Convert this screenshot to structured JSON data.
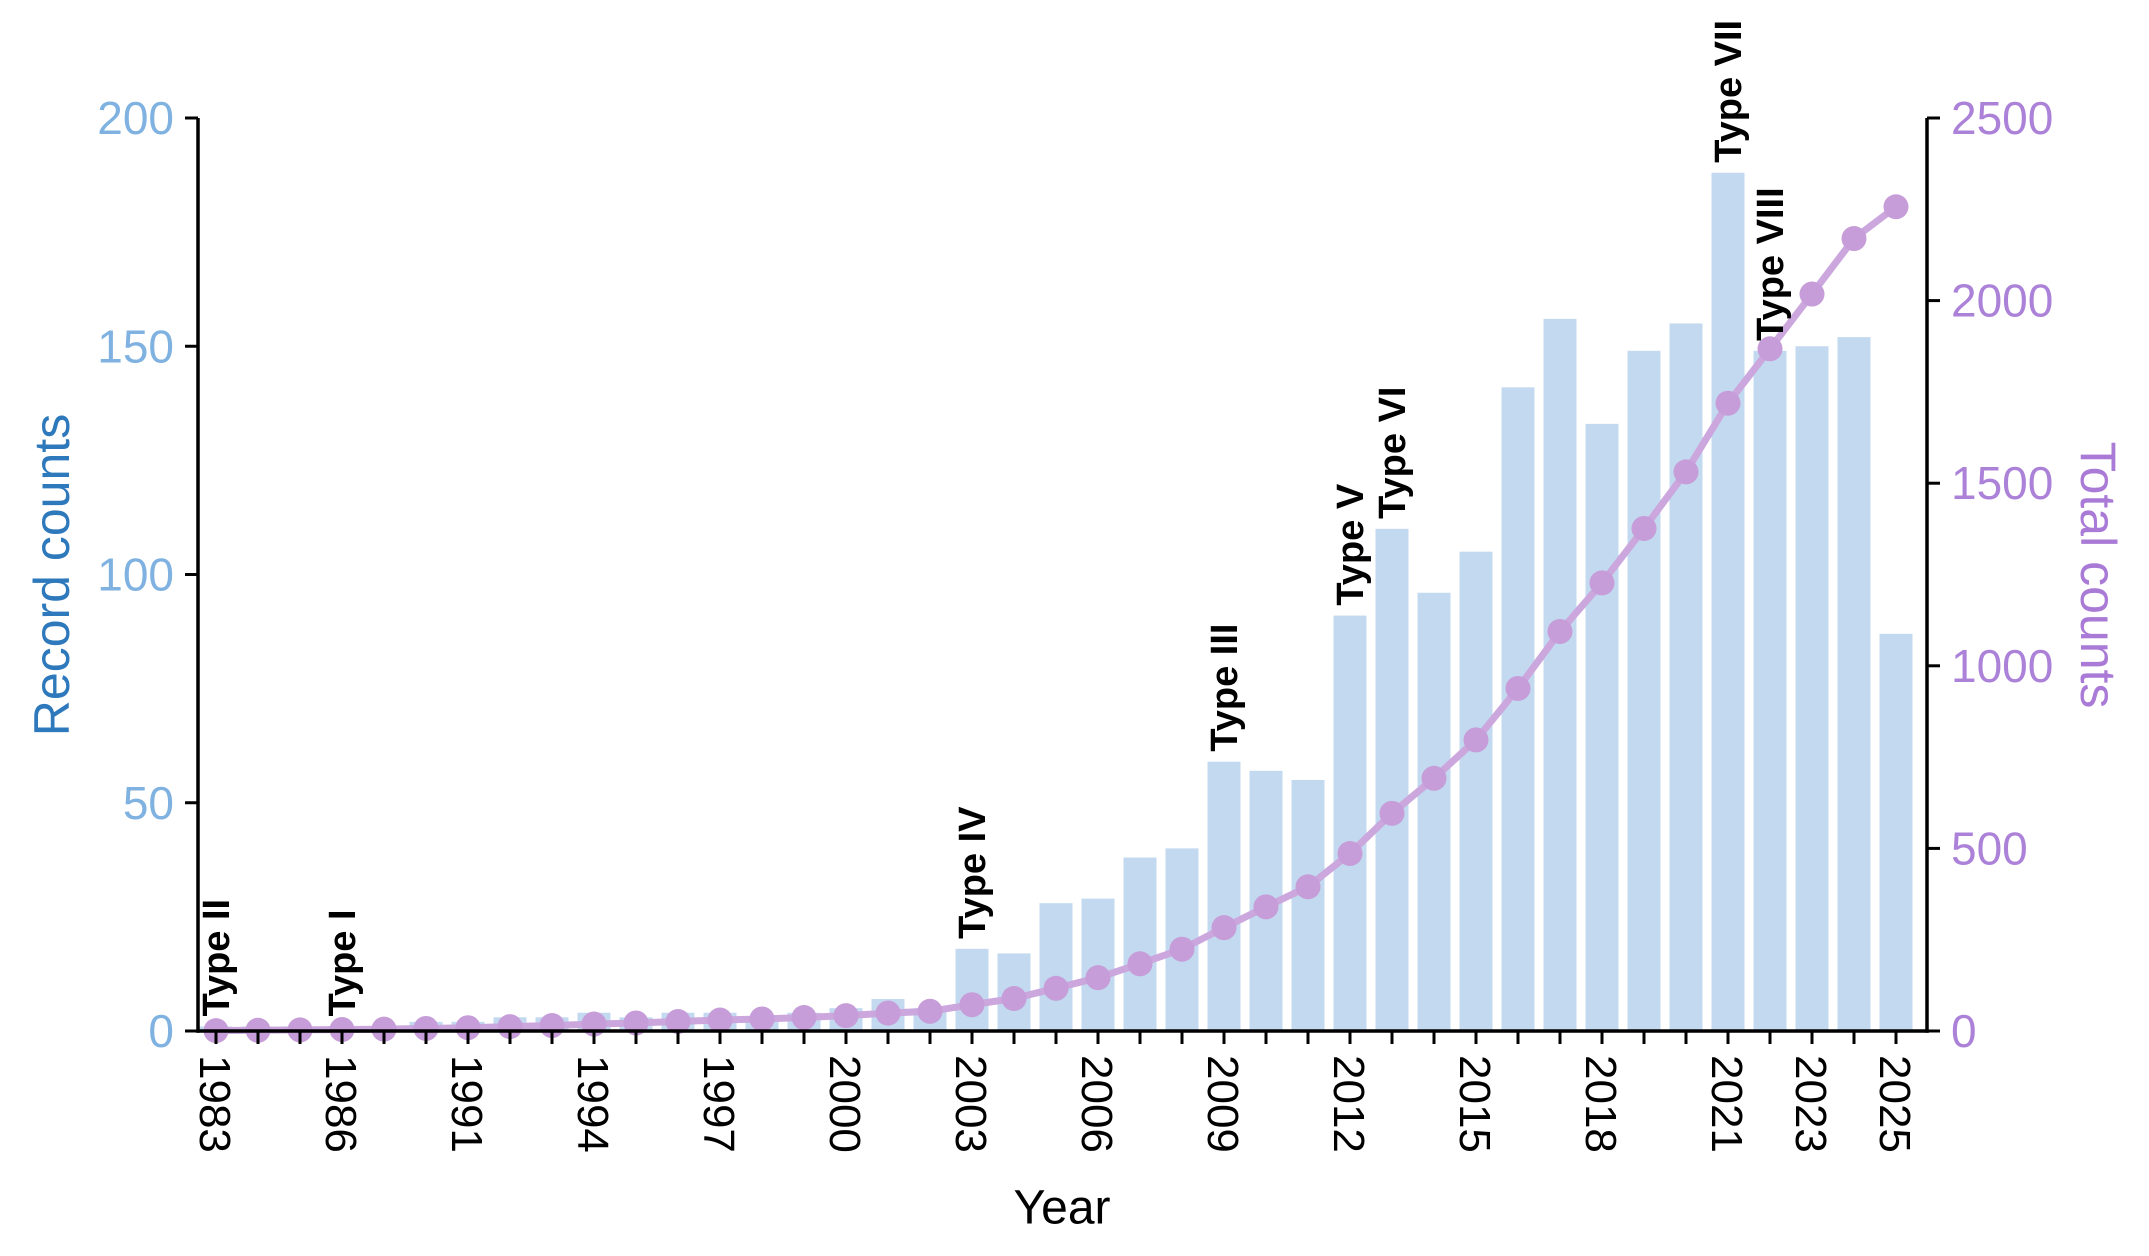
{
  "figure": {
    "xlabel": "Year",
    "ylabel_left": "Record counts",
    "ylabel_right": "Total counts"
  },
  "chart_data": {
    "type": "bar+line",
    "title": "",
    "xlabel": "Year",
    "grid": false,
    "legend": "none",
    "left_axis": {
      "label": "Record counts",
      "ticks": [
        0,
        50,
        100,
        150,
        200
      ],
      "range": [
        0,
        200
      ],
      "tick_color": "#7FB2E0",
      "label_color": "#2E79BC"
    },
    "right_axis": {
      "label": "Total counts",
      "ticks": [
        0,
        500,
        1000,
        1500,
        2000,
        2500
      ],
      "range": [
        0,
        2500
      ],
      "tick_color": "#AC82D9",
      "label_color": "#A97AD6"
    },
    "x": [
      1983,
      1984,
      1985,
      1986,
      1989,
      1990,
      1991,
      1992,
      1993,
      1994,
      1995,
      1996,
      1997,
      1998,
      1999,
      2000,
      2001,
      2002,
      2003,
      2004,
      2005,
      2006,
      2007,
      2008,
      2009,
      2010,
      2011,
      2012,
      2013,
      2014,
      2015,
      2016,
      2017,
      2018,
      2019,
      2020,
      2021,
      2022,
      2023,
      2024,
      2025
    ],
    "x_tick_labels": [
      "1983",
      "1986",
      "1991",
      "1994",
      "1997",
      "2000",
      "2003",
      "2006",
      "2009",
      "2012",
      "2015",
      "2018",
      "2021",
      "2023",
      "2025"
    ],
    "series": [
      {
        "name": "Record counts",
        "type": "bar",
        "color": "#C2D9F0",
        "values": [
          1,
          1,
          1,
          1,
          1,
          2,
          2,
          3,
          3,
          4,
          3,
          4,
          4,
          3,
          4,
          5,
          7,
          5,
          18,
          17,
          28,
          29,
          38,
          40,
          59,
          57,
          55,
          91,
          110,
          96,
          105,
          141,
          156,
          133,
          149,
          155,
          188,
          149,
          150,
          152,
          87
        ]
      },
      {
        "name": "Total counts",
        "type": "line",
        "color": "#CBA7DE",
        "marker_color": "#C69DD8",
        "values": [
          1,
          2,
          3,
          4,
          5,
          7,
          9,
          12,
          15,
          19,
          22,
          26,
          30,
          33,
          37,
          42,
          49,
          54,
          72,
          89,
          117,
          146,
          184,
          224,
          283,
          340,
          395,
          486,
          596,
          692,
          797,
          938,
          1094,
          1227,
          1376,
          1531,
          1719,
          1868,
          2018,
          2170,
          2257
        ]
      }
    ],
    "annotations": [
      {
        "label": "Type II",
        "year": 1983
      },
      {
        "label": "Type I",
        "year": 1986
      },
      {
        "label": "Type IV",
        "year": 2003
      },
      {
        "label": "Type III",
        "year": 2009
      },
      {
        "label": "Type V",
        "year": 2012
      },
      {
        "label": "Type VI",
        "year": 2013
      },
      {
        "label": "Type VII",
        "year": 2021
      },
      {
        "label": "Type VIII",
        "year": 2022
      }
    ],
    "axis_color": "#000000",
    "annotation_color": "#000000"
  }
}
